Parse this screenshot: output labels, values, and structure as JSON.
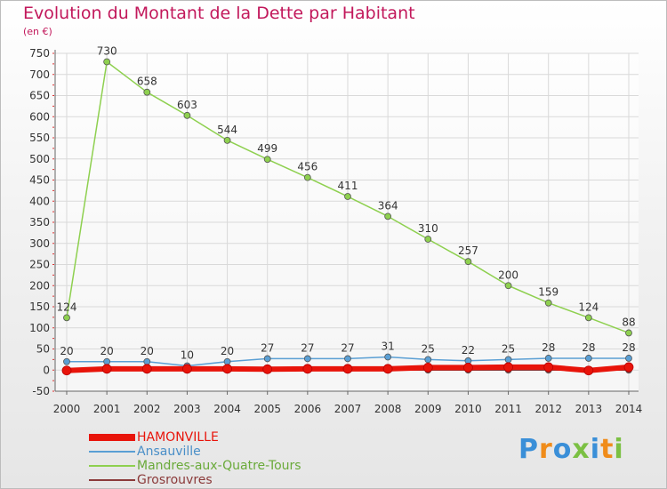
{
  "title": "Evolution du Montant de la Dette par Habitant",
  "subtitle": "(en €)",
  "chart_data": {
    "type": "line",
    "title": "Evolution du Montant de la Dette par Habitant",
    "ylabel": "(en €)",
    "xlabel": "",
    "x": [
      "2000",
      "2001",
      "2002",
      "2003",
      "2004",
      "2005",
      "2006",
      "2007",
      "2008",
      "2009",
      "2010",
      "2011",
      "2012",
      "2013",
      "2014"
    ],
    "ylim": [
      -50,
      750
    ],
    "yticks": [
      -50,
      0,
      50,
      100,
      150,
      200,
      250,
      300,
      350,
      400,
      450,
      500,
      550,
      600,
      650,
      700,
      750
    ],
    "grid": true,
    "series": [
      {
        "name": "HAMONVILLE",
        "color": "#e8140a",
        "values": [
          -1,
          3,
          3,
          3,
          3,
          2,
          3,
          3,
          3,
          6,
          6,
          7,
          7,
          -1,
          7
        ],
        "labels": false
      },
      {
        "name": "Ansauville",
        "color": "#5a9fd4",
        "values": [
          20,
          20,
          20,
          10,
          20,
          27,
          27,
          27,
          31,
          25,
          22,
          25,
          28,
          28,
          28
        ],
        "labels": true
      },
      {
        "name": "Mandres-aux-Quatre-Tours",
        "color": "#8ed04f",
        "values": [
          124,
          730,
          658,
          603,
          544,
          499,
          456,
          411,
          364,
          310,
          257,
          200,
          159,
          124,
          88
        ],
        "labels": true
      },
      {
        "name": "Grosrouvres",
        "color": "#8b3a3a",
        "values": [
          0,
          0,
          0,
          0,
          0,
          0,
          0,
          0,
          0,
          0,
          0,
          0,
          0,
          0,
          0
        ],
        "labels": false
      }
    ]
  },
  "legend": {
    "items": [
      "HAMONVILLE",
      "Ansauville",
      "Mandres-aux-Quatre-Tours",
      "Grosrouvres"
    ]
  },
  "logo": {
    "text": "Proxiti"
  }
}
